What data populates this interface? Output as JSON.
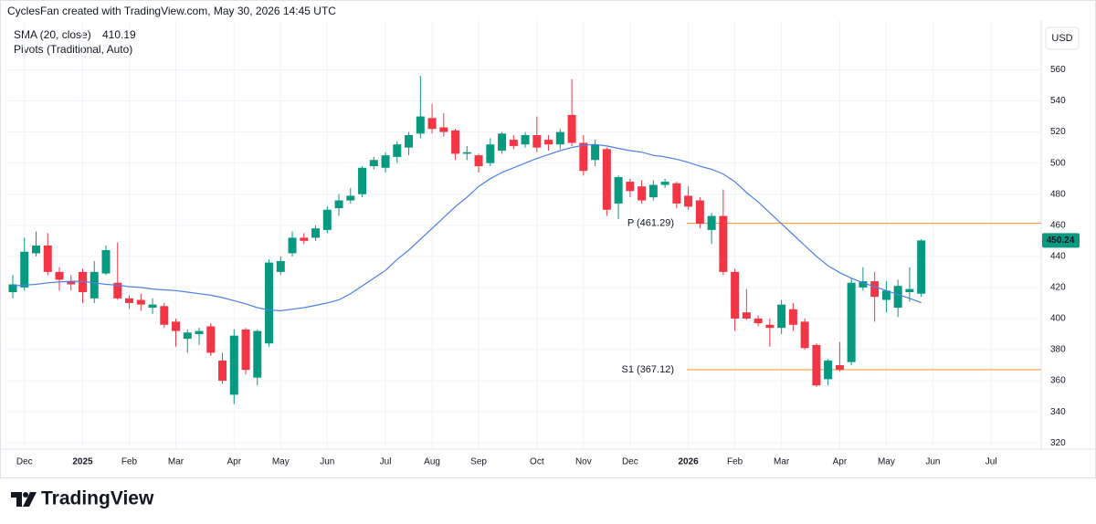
{
  "chart_data": {
    "type": "candlestick",
    "title": "CyclesFan created with TradingView.com, May 30, 2026 14:45 UTC",
    "brand": "TradingView",
    "currency": "USD",
    "up_color": "#089981",
    "down_color": "#f23645",
    "ylim": [
      316,
      592
    ],
    "yticks": [
      320,
      340,
      360,
      380,
      400,
      420,
      440,
      460,
      480,
      500,
      520,
      540,
      560
    ],
    "xlim": [
      -0.47,
      88.3
    ],
    "xticks": [
      {
        "value": 1,
        "label": "Dec"
      },
      {
        "value": 6,
        "label": "2025"
      },
      {
        "value": 10,
        "label": "Feb"
      },
      {
        "value": 14,
        "label": "Mar"
      },
      {
        "value": 19,
        "label": "Apr"
      },
      {
        "value": 23,
        "label": "May"
      },
      {
        "value": 27,
        "label": "Jun"
      },
      {
        "value": 32,
        "label": "Jul"
      },
      {
        "value": 36,
        "label": "Aug"
      },
      {
        "value": 40,
        "label": "Sep"
      },
      {
        "value": 45,
        "label": "Oct"
      },
      {
        "value": 49,
        "label": "Nov"
      },
      {
        "value": 53,
        "label": "Dec"
      },
      {
        "value": 58,
        "label": "2026"
      },
      {
        "value": 62,
        "label": "Feb"
      },
      {
        "value": 66,
        "label": "Mar"
      },
      {
        "value": 71,
        "label": "Apr"
      },
      {
        "value": 75,
        "label": "May"
      },
      {
        "value": 79,
        "label": "Jun"
      },
      {
        "value": 84,
        "label": "Jul"
      }
    ],
    "grid": true,
    "open": [
      417,
      420,
      442,
      447,
      430,
      424,
      430,
      413,
      429,
      423,
      413,
      412,
      407,
      408,
      398,
      387,
      390,
      395,
      373,
      351,
      393,
      362,
      384,
      430,
      442,
      452,
      452,
      457,
      471,
      476,
      480,
      498,
      497,
      504,
      510,
      519,
      529,
      523,
      521,
      506,
      505,
      500,
      508,
      515,
      512,
      518,
      515,
      512,
      531,
      513,
      502,
      509,
      474,
      488,
      485,
      478,
      486,
      487,
      479,
      476,
      457,
      466,
      430,
      404,
      400,
      396,
      394,
      406,
      398,
      383,
      361,
      370,
      372,
      420,
      424,
      412,
      407,
      417,
      416
    ],
    "high": [
      428,
      452,
      456,
      455,
      433,
      428,
      432,
      437,
      447,
      449,
      415,
      416,
      413,
      410,
      400,
      393,
      394,
      397,
      378,
      393,
      394,
      393,
      438,
      440,
      456,
      455,
      460,
      472,
      480,
      484,
      498,
      504,
      507,
      514,
      520,
      556,
      538,
      532,
      522,
      511,
      506,
      516,
      520,
      518,
      520,
      530,
      518,
      522,
      554,
      518,
      515,
      510,
      492,
      490,
      489,
      489,
      490,
      488,
      485,
      478,
      468,
      483,
      432,
      419,
      402,
      400,
      412,
      410,
      400,
      384,
      374,
      385,
      426,
      433,
      430,
      424,
      425,
      433,
      451
    ],
    "low": [
      413,
      418,
      440,
      428,
      418,
      418,
      410,
      410,
      428,
      412,
      406,
      405,
      403,
      394,
      382,
      378,
      383,
      376,
      358,
      345,
      364,
      357,
      382,
      428,
      440,
      448,
      450,
      455,
      466,
      474,
      478,
      496,
      494,
      500,
      505,
      516,
      519,
      517,
      502,
      502,
      494,
      498,
      506,
      509,
      510,
      507,
      508,
      509,
      511,
      492,
      498,
      466,
      464,
      478,
      474,
      476,
      484,
      471,
      470,
      458,
      448,
      428,
      392,
      399,
      395,
      382,
      390,
      392,
      380,
      356,
      357,
      366,
      370,
      418,
      398,
      404,
      401,
      411,
      414
    ],
    "close": [
      422,
      443,
      447,
      430,
      425,
      422,
      417,
      430,
      444,
      413,
      410,
      409,
      409,
      396,
      392,
      391,
      392,
      378,
      360,
      389,
      367,
      392,
      436,
      437,
      452,
      450,
      458,
      470,
      476,
      479,
      497,
      502,
      505,
      512,
      518,
      530,
      522,
      520,
      506,
      507,
      498,
      512,
      519,
      511,
      518,
      510,
      512,
      520,
      513,
      495,
      512,
      470,
      491,
      482,
      476,
      486,
      488,
      474,
      472,
      461,
      466,
      430,
      400,
      400,
      397,
      394,
      409,
      396,
      381,
      357,
      373,
      367,
      423,
      424,
      414,
      418,
      421,
      419,
      450.24
    ],
    "series": [
      {
        "name": "SMA (20, close)",
        "color": "#4f7fe8",
        "values": [
          421,
          421.5,
          422,
          423,
          423.5,
          424,
          424,
          423,
          422,
          421.5,
          420.5,
          420,
          419,
          418.5,
          418,
          417,
          416,
          415,
          413.5,
          411.5,
          409.5,
          407,
          405.5,
          405,
          406,
          407,
          408.5,
          410,
          412,
          416,
          421,
          426,
          431,
          438,
          444,
          451,
          458,
          465,
          472,
          478,
          485,
          490,
          494,
          497,
          500,
          503,
          505.5,
          508,
          510,
          511.5,
          512,
          511,
          509.5,
          508,
          507,
          505,
          504,
          502.5,
          500.5,
          498,
          496,
          493,
          488,
          481,
          475,
          468,
          461,
          454,
          447,
          440,
          434,
          429.5,
          426,
          423,
          420.5,
          418,
          415.5,
          413,
          410.19
        ]
      }
    ],
    "indicator": "Pivots (Traditional, Auto)",
    "pivots": [
      {
        "label": "P (461.29)",
        "value": 461.29,
        "color": "#f7a23b"
      },
      {
        "label": "S1 (367.12)",
        "value": 367.12,
        "color": "#f7a23b"
      }
    ]
  }
}
